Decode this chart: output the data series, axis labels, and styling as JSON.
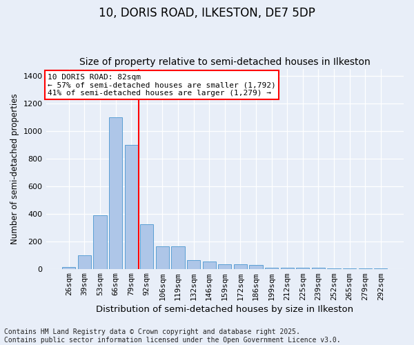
{
  "title1": "10, DORIS ROAD, ILKESTON, DE7 5DP",
  "title2": "Size of property relative to semi-detached houses in Ilkeston",
  "xlabel": "Distribution of semi-detached houses by size in Ilkeston",
  "ylabel": "Number of semi-detached properties",
  "categories": [
    "26sqm",
    "39sqm",
    "53sqm",
    "66sqm",
    "79sqm",
    "92sqm",
    "106sqm",
    "119sqm",
    "132sqm",
    "146sqm",
    "159sqm",
    "172sqm",
    "186sqm",
    "199sqm",
    "212sqm",
    "225sqm",
    "239sqm",
    "252sqm",
    "265sqm",
    "279sqm",
    "292sqm"
  ],
  "values": [
    15,
    100,
    390,
    1100,
    900,
    325,
    165,
    165,
    65,
    55,
    35,
    35,
    30,
    10,
    10,
    10,
    10,
    4,
    4,
    4,
    2
  ],
  "bar_color": "#aec6e8",
  "bar_edge_color": "#5a9fd4",
  "vline_x_index": 4,
  "vline_color": "red",
  "annotation_text": "10 DORIS ROAD: 82sqm\n← 57% of semi-detached houses are smaller (1,792)\n41% of semi-detached houses are larger (1,279) →",
  "annotation_box_color": "white",
  "annotation_box_edge": "red",
  "ylim": [
    0,
    1450
  ],
  "yticks": [
    0,
    200,
    400,
    600,
    800,
    1000,
    1200,
    1400
  ],
  "bg_color": "#e8eef8",
  "plot_bg_color": "#e8eef8",
  "footnote": "Contains HM Land Registry data © Crown copyright and database right 2025.\nContains public sector information licensed under the Open Government Licence v3.0.",
  "title1_fontsize": 12,
  "title2_fontsize": 10,
  "xlabel_fontsize": 9.5,
  "ylabel_fontsize": 8.5,
  "footnote_fontsize": 7,
  "tick_fontsize": 8,
  "annotation_fontsize": 8
}
